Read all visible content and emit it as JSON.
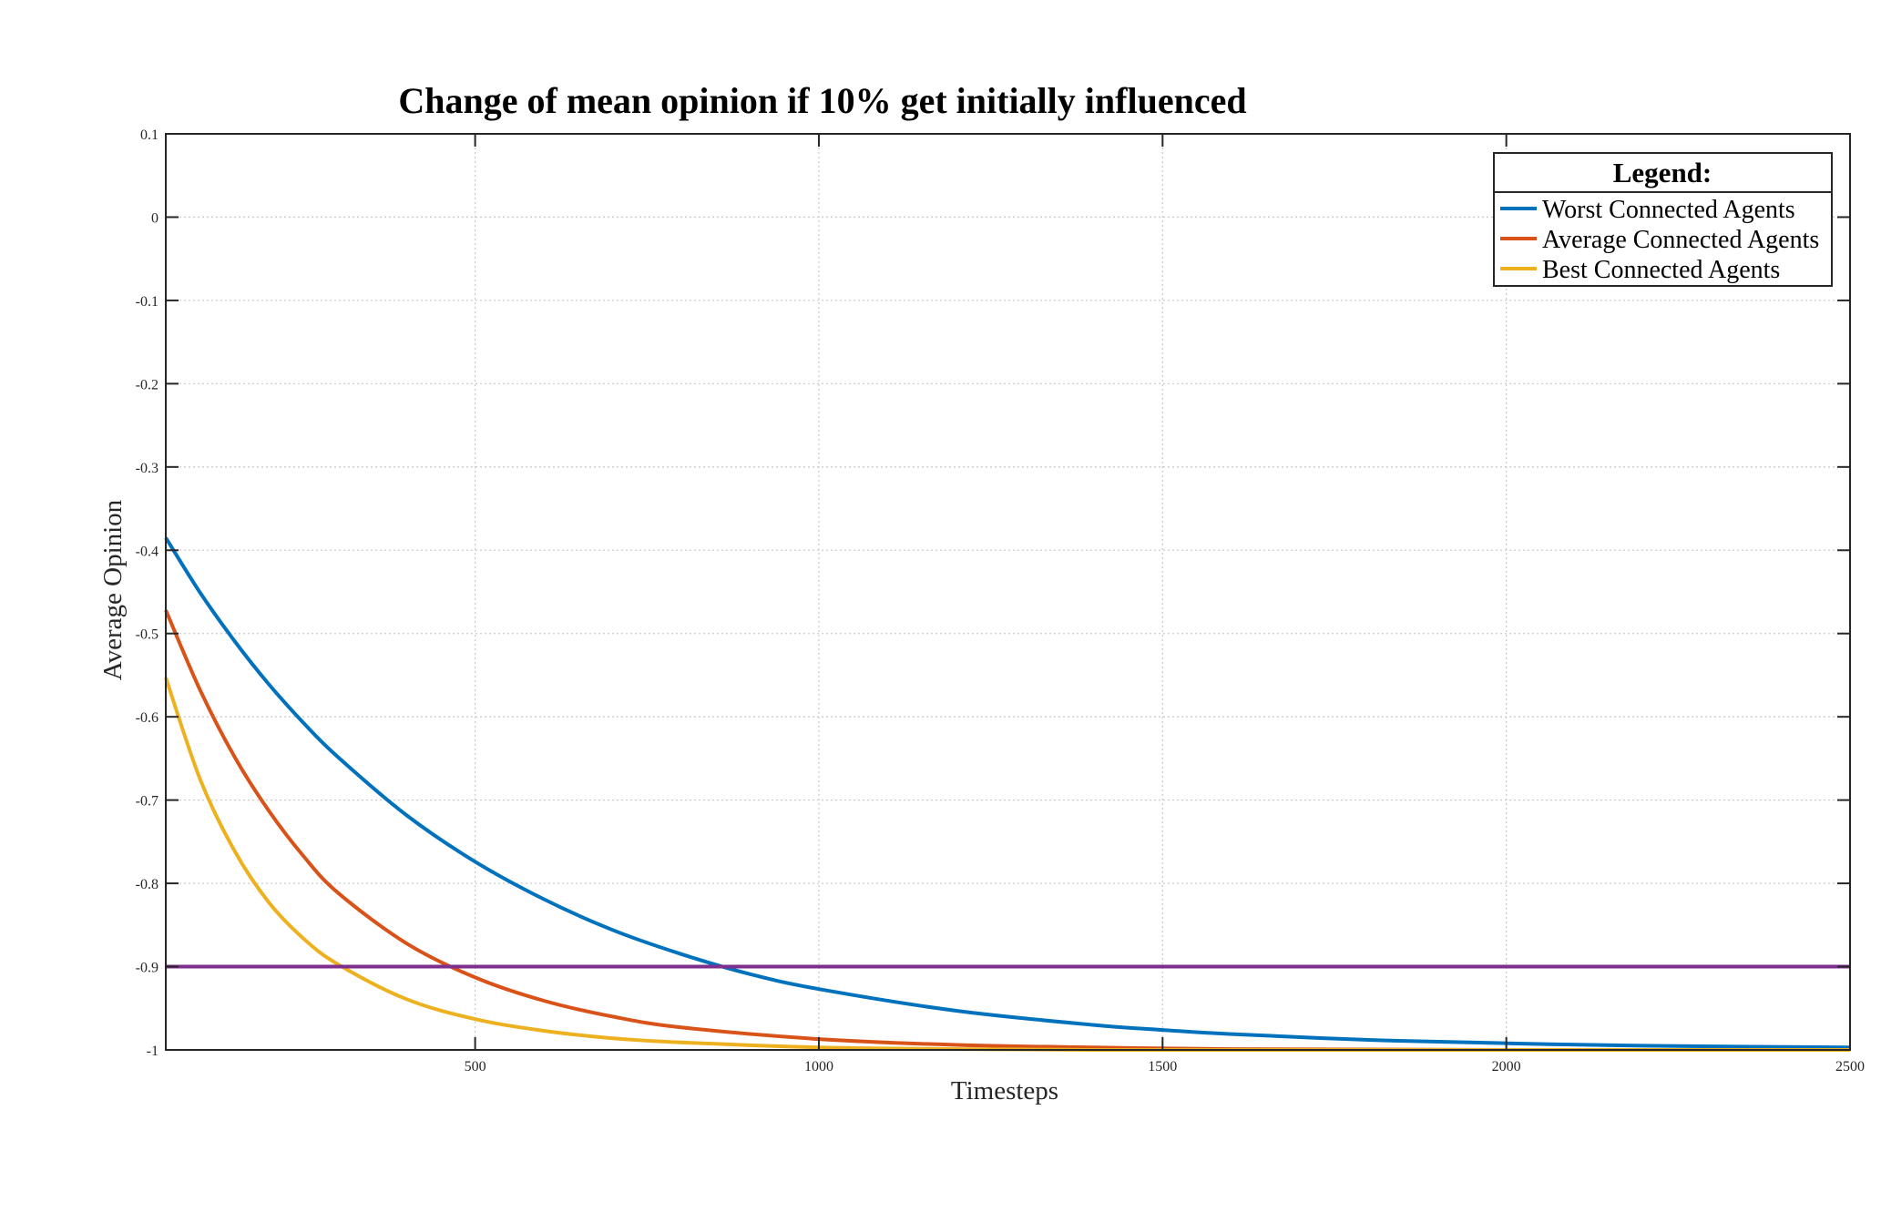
{
  "chart_data": {
    "type": "line",
    "title": "Change of mean opinion if 10% get initially influenced",
    "xlabel": "Timesteps",
    "ylabel": "Average Opinion",
    "xlim": [
      50,
      2500
    ],
    "ylim": [
      -1,
      0.1
    ],
    "xticks": [
      500,
      1000,
      1500,
      2000,
      2500
    ],
    "xtick_labels": [
      "500",
      "1000",
      "1500",
      "2000",
      "2500"
    ],
    "yticks": [
      0.1,
      0,
      -0.1,
      -0.2,
      -0.3,
      -0.4,
      -0.5,
      -0.6,
      -0.7,
      -0.8,
      -0.9,
      -1
    ],
    "ytick_labels": [
      "0.1",
      "0",
      "-0.1",
      "-0.2",
      "-0.3",
      "-0.4",
      "-0.5",
      "-0.6",
      "-0.7",
      "-0.8",
      "-0.9",
      "-1"
    ],
    "grid": true,
    "legend": {
      "title": "Legend:",
      "location": "top-right"
    },
    "series": [
      {
        "name": "Worst Connected Agents",
        "color": "#0072BD",
        "x": [
          50,
          100,
          150,
          200,
          250,
          300,
          400,
          500,
          600,
          700,
          800,
          900,
          1000,
          1200,
          1400,
          1500,
          1600,
          1800,
          2000,
          2200,
          2500
        ],
        "y": [
          -0.385,
          -0.451,
          -0.509,
          -0.561,
          -0.607,
          -0.648,
          -0.718,
          -0.774,
          -0.819,
          -0.856,
          -0.885,
          -0.909,
          -0.927,
          -0.953,
          -0.97,
          -0.976,
          -0.981,
          -0.988,
          -0.992,
          -0.995,
          -0.997
        ]
      },
      {
        "name": "Average Connected Agents",
        "color": "#D95319",
        "x": [
          50,
          100,
          150,
          200,
          250,
          300,
          400,
          500,
          600,
          700,
          800,
          1000,
          1200,
          1400,
          1600,
          2000,
          2500
        ],
        "y": [
          -0.472,
          -0.568,
          -0.648,
          -0.713,
          -0.767,
          -0.811,
          -0.872,
          -0.913,
          -0.941,
          -0.96,
          -0.973,
          -0.987,
          -0.994,
          -0.997,
          -0.999,
          -1.0,
          -1.0
        ]
      },
      {
        "name": "Best Connected Agents",
        "color": "#EDB120",
        "x": [
          50,
          100,
          150,
          200,
          250,
          300,
          400,
          500,
          600,
          700,
          800,
          1000,
          1200,
          1400,
          1600,
          2000,
          2500
        ],
        "y": [
          -0.553,
          -0.675,
          -0.761,
          -0.823,
          -0.866,
          -0.897,
          -0.939,
          -0.963,
          -0.977,
          -0.986,
          -0.991,
          -0.997,
          -0.999,
          -1.0,
          -1.0,
          -1.0,
          -1.0
        ]
      },
      {
        "color": "#7E2F8E",
        "x": [
          50,
          2500
        ],
        "y": [
          -0.9,
          -0.9
        ]
      }
    ]
  }
}
